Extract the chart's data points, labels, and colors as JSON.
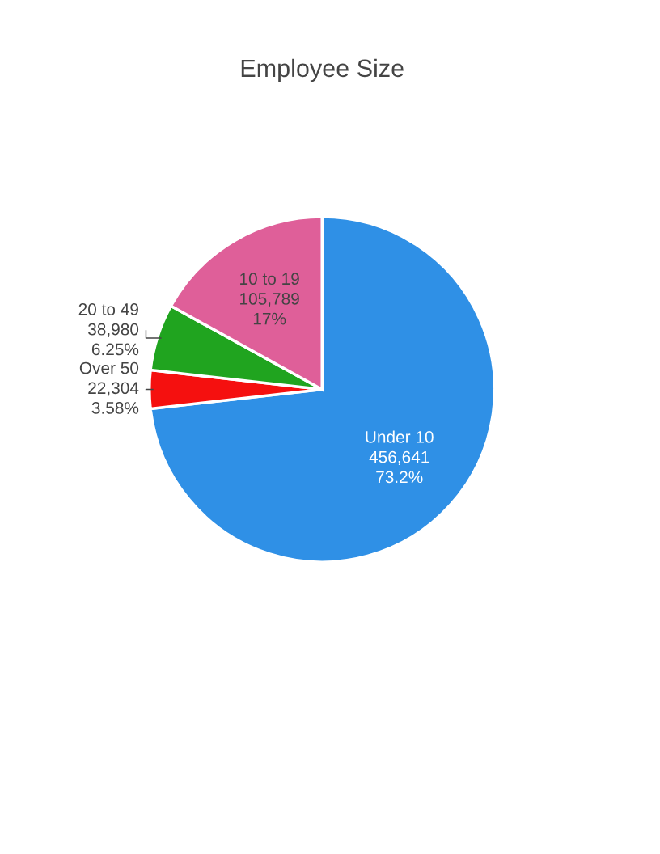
{
  "chart_data": {
    "type": "pie",
    "title": "Employee Size",
    "categories": [
      "Under 10",
      "Over 50",
      "20 to 49",
      "10 to 19"
    ],
    "values": [
      456641,
      22304,
      38980,
      105789
    ],
    "colors": [
      "#2f90e6",
      "#f5100f",
      "#20a41f",
      "#df5f99"
    ],
    "value_labels": [
      "456,641",
      "22,304",
      "38,980",
      "105,789"
    ],
    "annotations": [
      {
        "text": "73.2%",
        "x": "Under 10"
      },
      {
        "text": "3.58%",
        "x": "Over 50"
      },
      {
        "text": "6.25%",
        "x": "20 to 49"
      },
      {
        "text": "17%",
        "x": "10 to 19"
      }
    ]
  }
}
